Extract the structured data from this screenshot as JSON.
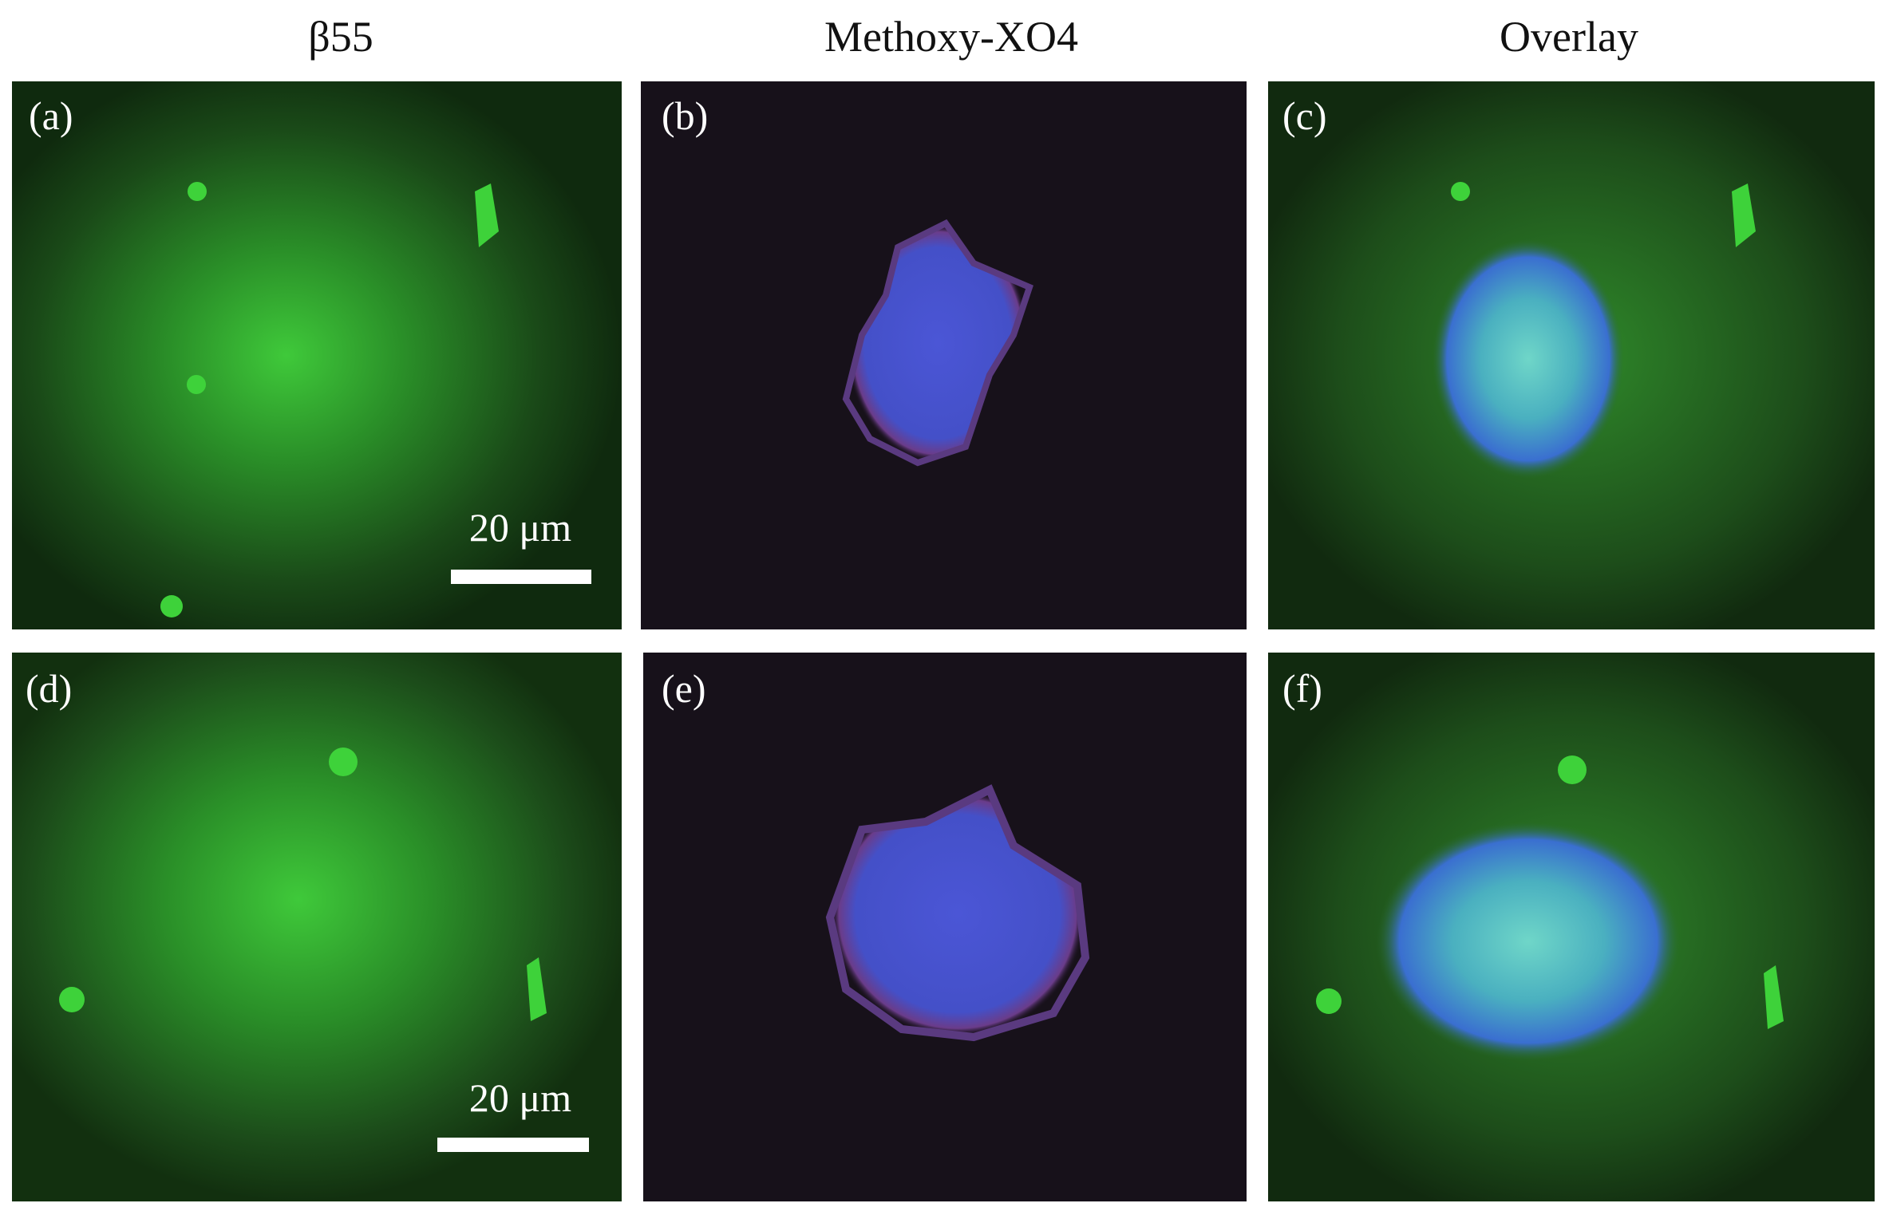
{
  "column_headers": [
    "β55",
    "Methoxy-XO4",
    "Overlay"
  ],
  "panels": [
    {
      "label": "(a)",
      "scale_bar": "20 μm"
    },
    {
      "label": "(b)"
    },
    {
      "label": "(c)"
    },
    {
      "label": "(d)",
      "scale_bar": "20 μm"
    },
    {
      "label": "(e)"
    },
    {
      "label": "(f)"
    }
  ]
}
